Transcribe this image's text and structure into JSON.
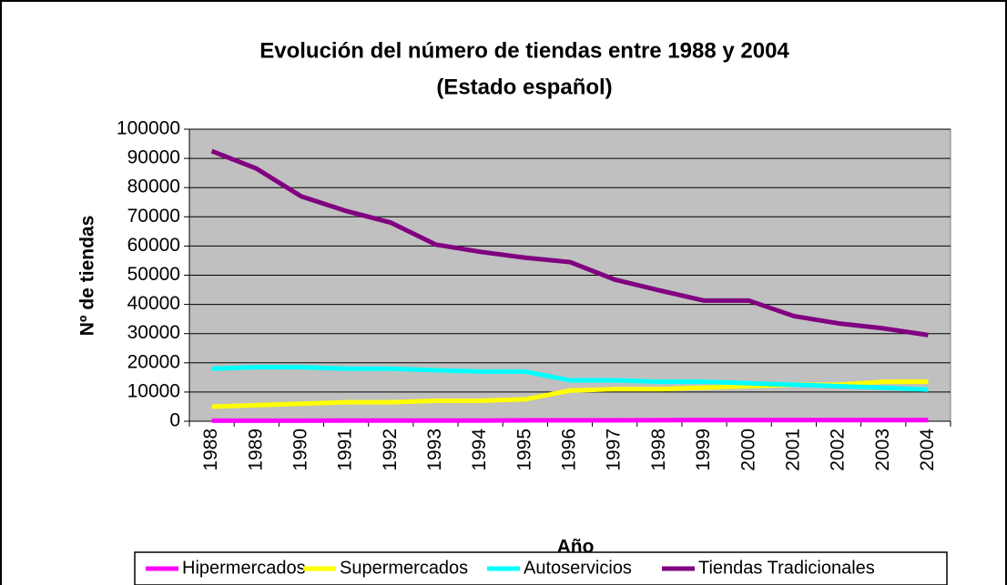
{
  "chart_data": {
    "type": "line",
    "title": "Evolución del número de tiendas entre 1988 y 2004",
    "subtitle": "(Estado español)",
    "x_label": "Año",
    "y_label": "Nº de tiendas",
    "categories": [
      "1988",
      "1989",
      "1990",
      "1991",
      "1992",
      "1993",
      "1994",
      "1995",
      "1996",
      "1997",
      "1998",
      "1999",
      "2000",
      "2001",
      "2002",
      "2003",
      "2004"
    ],
    "series": [
      {
        "name": "Hipermercados",
        "color": "#ff00ff",
        "values": [
          200,
          200,
          200,
          250,
          250,
          250,
          250,
          300,
          300,
          300,
          350,
          400,
          400,
          400,
          400,
          400,
          400
        ]
      },
      {
        "name": "Supermercados",
        "color": "#ffff00",
        "values": [
          5000,
          5500,
          6000,
          6500,
          6500,
          7000,
          7000,
          7500,
          10500,
          11000,
          11000,
          11500,
          12000,
          12500,
          12500,
          13500,
          13500
        ]
      },
      {
        "name": "Autoservicios",
        "color": "#00ffff",
        "values": [
          18000,
          18500,
          18500,
          18000,
          18000,
          17500,
          17000,
          17000,
          14000,
          14000,
          13500,
          13500,
          13000,
          12500,
          12000,
          11500,
          10800
        ]
      },
      {
        "name": "Tiendas Tradicionales",
        "color": "#800080",
        "values": [
          92500,
          86500,
          77000,
          72000,
          68000,
          60500,
          58000,
          56000,
          54500,
          48500,
          44800,
          41300,
          41300,
          36000,
          33500,
          31800,
          29500
        ]
      }
    ],
    "ylim": [
      0,
      100000
    ],
    "yticks": [
      0,
      10000,
      20000,
      30000,
      40000,
      50000,
      60000,
      70000,
      80000,
      90000,
      100000
    ],
    "grid": true,
    "legend": "bottom",
    "plot_background": "#c0c0c0"
  }
}
